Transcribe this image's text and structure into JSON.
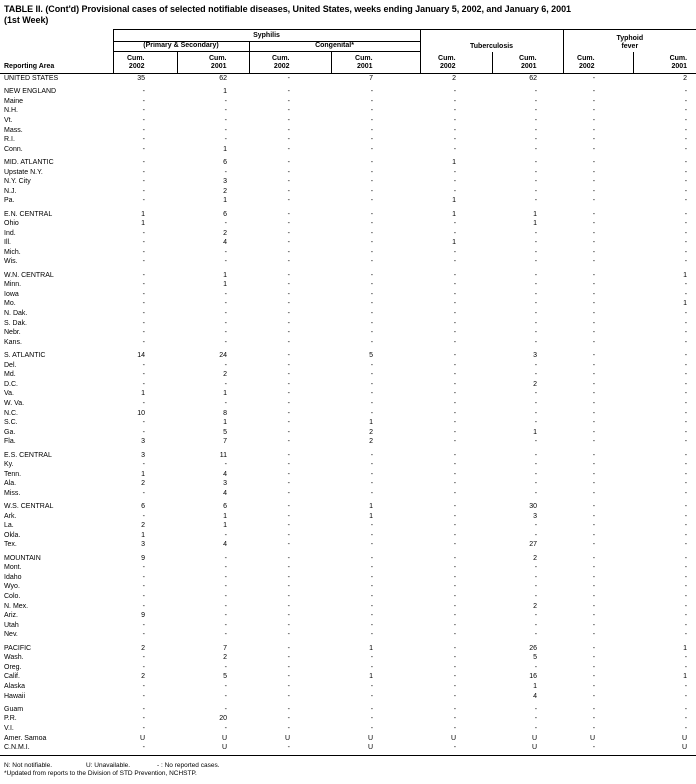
{
  "title": {
    "line1": "TABLE II. (Cont'd) Provisional cases of selected notifiable diseases, United States, weeks ending January 5, 2002, and January 6, 2001",
    "line2": "(1st Week)"
  },
  "header": {
    "reporting_area": "Reporting Area",
    "groups": {
      "syphilis": "Syphilis",
      "primary_secondary": "(Primary & Secondary)",
      "congenital": "Congenital*",
      "tuberculosis": "Tuberculosis",
      "typhoid_line1": "Typhoid",
      "typhoid_line2": "fever"
    },
    "col_headers": [
      {
        "l1": "Cum.",
        "l2": "2002"
      },
      {
        "l1": "Cum.",
        "l2": "2001"
      },
      {
        "l1": "Cum.",
        "l2": "2002"
      },
      {
        "l1": "Cum.",
        "l2": "2001"
      },
      {
        "l1": "Cum.",
        "l2": "2002"
      },
      {
        "l1": "Cum.",
        "l2": "2001"
      },
      {
        "l1": "Cum.",
        "l2": "2002"
      },
      {
        "l1": "Cum.",
        "l2": "2001"
      }
    ]
  },
  "sections": [
    {
      "rows": [
        {
          "area": "UNITED STATES",
          "values": [
            "35",
            "62",
            "-",
            "7",
            "2",
            "62",
            "-",
            "2"
          ]
        }
      ]
    },
    {
      "rows": [
        {
          "area": "NEW ENGLAND",
          "values": [
            "-",
            "1",
            "-",
            "-",
            "-",
            "-",
            "-",
            "-"
          ]
        },
        {
          "area": "Maine",
          "values": [
            "-",
            "-",
            "-",
            "-",
            "-",
            "-",
            "-",
            "-"
          ]
        },
        {
          "area": "N.H.",
          "values": [
            "-",
            "-",
            "-",
            "-",
            "-",
            "-",
            "-",
            "-"
          ]
        },
        {
          "area": "Vt.",
          "values": [
            "-",
            "-",
            "-",
            "-",
            "-",
            "-",
            "-",
            "-"
          ]
        },
        {
          "area": "Mass.",
          "values": [
            "-",
            "-",
            "-",
            "-",
            "-",
            "-",
            "-",
            "-"
          ]
        },
        {
          "area": "R.I.",
          "values": [
            "-",
            "-",
            "-",
            "-",
            "-",
            "-",
            "-",
            "-"
          ]
        },
        {
          "area": "Conn.",
          "values": [
            "-",
            "1",
            "-",
            "-",
            "-",
            "-",
            "-",
            "-"
          ]
        }
      ]
    },
    {
      "rows": [
        {
          "area": "MID. ATLANTIC",
          "values": [
            "-",
            "6",
            "-",
            "-",
            "1",
            "-",
            "-",
            "-"
          ]
        },
        {
          "area": "Upstate N.Y.",
          "values": [
            "-",
            "-",
            "-",
            "-",
            "-",
            "-",
            "-",
            "-"
          ]
        },
        {
          "area": "N.Y. City",
          "values": [
            "-",
            "3",
            "-",
            "-",
            "-",
            "-",
            "-",
            "-"
          ]
        },
        {
          "area": "N.J.",
          "values": [
            "-",
            "2",
            "-",
            "-",
            "-",
            "-",
            "-",
            "-"
          ]
        },
        {
          "area": "Pa.",
          "values": [
            "-",
            "1",
            "-",
            "-",
            "1",
            "-",
            "-",
            "-"
          ]
        }
      ]
    },
    {
      "rows": [
        {
          "area": "E.N. CENTRAL",
          "values": [
            "1",
            "6",
            "-",
            "-",
            "1",
            "1",
            "-",
            "-"
          ]
        },
        {
          "area": "Ohio",
          "values": [
            "1",
            "-",
            "-",
            "-",
            "-",
            "1",
            "-",
            "-"
          ]
        },
        {
          "area": "Ind.",
          "values": [
            "-",
            "2",
            "-",
            "-",
            "-",
            "-",
            "-",
            "-"
          ]
        },
        {
          "area": "Ill.",
          "values": [
            "-",
            "4",
            "-",
            "-",
            "1",
            "-",
            "-",
            "-"
          ]
        },
        {
          "area": "Mich.",
          "values": [
            "-",
            "-",
            "-",
            "-",
            "-",
            "-",
            "-",
            "-"
          ]
        },
        {
          "area": "Wis.",
          "values": [
            "-",
            "-",
            "-",
            "-",
            "-",
            "-",
            "-",
            "-"
          ]
        }
      ]
    },
    {
      "rows": [
        {
          "area": "W.N. CENTRAL",
          "values": [
            "-",
            "1",
            "-",
            "-",
            "-",
            "-",
            "-",
            "1"
          ]
        },
        {
          "area": "Minn.",
          "values": [
            "-",
            "1",
            "-",
            "-",
            "-",
            "-",
            "-",
            "-"
          ]
        },
        {
          "area": "Iowa",
          "values": [
            "-",
            "-",
            "-",
            "-",
            "-",
            "-",
            "-",
            "-"
          ]
        },
        {
          "area": "Mo.",
          "values": [
            "-",
            "-",
            "-",
            "-",
            "-",
            "-",
            "-",
            "1"
          ]
        },
        {
          "area": "N. Dak.",
          "values": [
            "-",
            "-",
            "-",
            "-",
            "-",
            "-",
            "-",
            "-"
          ]
        },
        {
          "area": "S. Dak.",
          "values": [
            "-",
            "-",
            "-",
            "-",
            "-",
            "-",
            "-",
            "-"
          ]
        },
        {
          "area": "Nebr.",
          "values": [
            "-",
            "-",
            "-",
            "-",
            "-",
            "-",
            "-",
            "-"
          ]
        },
        {
          "area": "Kans.",
          "values": [
            "-",
            "-",
            "-",
            "-",
            "-",
            "-",
            "-",
            "-"
          ]
        }
      ]
    },
    {
      "rows": [
        {
          "area": "S. ATLANTIC",
          "values": [
            "14",
            "24",
            "-",
            "5",
            "-",
            "3",
            "-",
            "-"
          ]
        },
        {
          "area": "Del.",
          "values": [
            "-",
            "-",
            "-",
            "-",
            "-",
            "-",
            "-",
            "-"
          ]
        },
        {
          "area": "Md.",
          "values": [
            "-",
            "2",
            "-",
            "-",
            "-",
            "-",
            "-",
            "-"
          ]
        },
        {
          "area": "D.C.",
          "values": [
            "-",
            "-",
            "-",
            "-",
            "-",
            "2",
            "-",
            "-"
          ]
        },
        {
          "area": "Va.",
          "values": [
            "1",
            "1",
            "-",
            "-",
            "-",
            "-",
            "-",
            "-"
          ]
        },
        {
          "area": "W. Va.",
          "values": [
            "-",
            "-",
            "-",
            "-",
            "-",
            "-",
            "-",
            "-"
          ]
        },
        {
          "area": "N.C.",
          "values": [
            "10",
            "8",
            "-",
            "-",
            "-",
            "-",
            "-",
            "-"
          ]
        },
        {
          "area": "S.C.",
          "values": [
            "-",
            "1",
            "-",
            "1",
            "-",
            "-",
            "-",
            "-"
          ]
        },
        {
          "area": "Ga.",
          "values": [
            "-",
            "5",
            "-",
            "2",
            "-",
            "1",
            "-",
            "-"
          ]
        },
        {
          "area": "Fla.",
          "values": [
            "3",
            "7",
            "-",
            "2",
            "-",
            "-",
            "-",
            "-"
          ]
        }
      ]
    },
    {
      "rows": [
        {
          "area": "E.S. CENTRAL",
          "values": [
            "3",
            "11",
            "-",
            "-",
            "-",
            "-",
            "-",
            "-"
          ]
        },
        {
          "area": "Ky.",
          "values": [
            "-",
            "-",
            "-",
            "-",
            "-",
            "-",
            "-",
            "-"
          ]
        },
        {
          "area": "Tenn.",
          "values": [
            "1",
            "4",
            "-",
            "-",
            "-",
            "-",
            "-",
            "-"
          ]
        },
        {
          "area": "Ala.",
          "values": [
            "2",
            "3",
            "-",
            "-",
            "-",
            "-",
            "-",
            "-"
          ]
        },
        {
          "area": "Miss.",
          "values": [
            "-",
            "4",
            "-",
            "-",
            "-",
            "-",
            "-",
            "-"
          ]
        }
      ]
    },
    {
      "rows": [
        {
          "area": "W.S. CENTRAL",
          "values": [
            "6",
            "6",
            "-",
            "1",
            "-",
            "30",
            "-",
            "-"
          ]
        },
        {
          "area": "Ark.",
          "values": [
            "-",
            "1",
            "-",
            "1",
            "-",
            "3",
            "-",
            "-"
          ]
        },
        {
          "area": "La.",
          "values": [
            "2",
            "1",
            "-",
            "-",
            "-",
            "-",
            "-",
            "-"
          ]
        },
        {
          "area": "Okla.",
          "values": [
            "1",
            "-",
            "-",
            "-",
            "-",
            "-",
            "-",
            "-"
          ]
        },
        {
          "area": "Tex.",
          "values": [
            "3",
            "4",
            "-",
            "-",
            "-",
            "27",
            "-",
            "-"
          ]
        }
      ]
    },
    {
      "rows": [
        {
          "area": "MOUNTAIN",
          "values": [
            "9",
            "-",
            "-",
            "-",
            "-",
            "2",
            "-",
            "-"
          ]
        },
        {
          "area": "Mont.",
          "values": [
            "-",
            "-",
            "-",
            "-",
            "-",
            "-",
            "-",
            "-"
          ]
        },
        {
          "area": "Idaho",
          "values": [
            "-",
            "-",
            "-",
            "-",
            "-",
            "-",
            "-",
            "-"
          ]
        },
        {
          "area": "Wyo.",
          "values": [
            "-",
            "-",
            "-",
            "-",
            "-",
            "-",
            "-",
            "-"
          ]
        },
        {
          "area": "Colo.",
          "values": [
            "-",
            "-",
            "-",
            "-",
            "-",
            "-",
            "-",
            "-"
          ]
        },
        {
          "area": "N. Mex.",
          "values": [
            "-",
            "-",
            "-",
            "-",
            "-",
            "2",
            "-",
            "-"
          ]
        },
        {
          "area": "Ariz.",
          "values": [
            "9",
            "-",
            "-",
            "-",
            "-",
            "-",
            "-",
            "-"
          ]
        },
        {
          "area": "Utah",
          "values": [
            "-",
            "-",
            "-",
            "-",
            "-",
            "-",
            "-",
            "-"
          ]
        },
        {
          "area": "Nev.",
          "values": [
            "-",
            "-",
            "-",
            "-",
            "-",
            "-",
            "-",
            "-"
          ]
        }
      ]
    },
    {
      "rows": [
        {
          "area": "PACIFIC",
          "values": [
            "2",
            "7",
            "-",
            "1",
            "-",
            "26",
            "-",
            "1"
          ]
        },
        {
          "area": "Wash.",
          "values": [
            "-",
            "2",
            "-",
            "-",
            "-",
            "5",
            "-",
            "-"
          ]
        },
        {
          "area": "Oreg.",
          "values": [
            "-",
            "-",
            "-",
            "-",
            "-",
            "-",
            "-",
            "-"
          ]
        },
        {
          "area": "Calif.",
          "values": [
            "2",
            "5",
            "-",
            "1",
            "-",
            "16",
            "-",
            "1"
          ]
        },
        {
          "area": "Alaska",
          "values": [
            "-",
            "-",
            "-",
            "-",
            "-",
            "1",
            "-",
            "-"
          ]
        },
        {
          "area": "Hawaii",
          "values": [
            "-",
            "-",
            "-",
            "-",
            "-",
            "4",
            "-",
            "-"
          ]
        }
      ]
    },
    {
      "rows": [
        {
          "area": "Guam",
          "values": [
            "-",
            "-",
            "-",
            "-",
            "-",
            "-",
            "-",
            "-"
          ]
        },
        {
          "area": "P.R.",
          "values": [
            "-",
            "20",
            "-",
            "-",
            "-",
            "-",
            "-",
            "-"
          ]
        },
        {
          "area": "V.I.",
          "values": [
            "-",
            "-",
            "-",
            "-",
            "-",
            "-",
            "-",
            "-"
          ]
        },
        {
          "area": "Amer. Samoa",
          "values": [
            "U",
            "U",
            "U",
            "U",
            "U",
            "U",
            "U",
            "U"
          ]
        },
        {
          "area": "C.N.M.I.",
          "values": [
            "-",
            "U",
            "-",
            "U",
            "-",
            "U",
            "-",
            "U"
          ]
        }
      ]
    }
  ],
  "footnotes": {
    "item1": "N: Not notifiable.",
    "item2": "U: Unavailable.",
    "item3": "- : No reported cases.",
    "line2": "*Updated from reports to the Division of STD Prevention, NCHSTP."
  },
  "colors": {
    "text": "#000000",
    "border": "#000000",
    "background": "#ffffff"
  }
}
